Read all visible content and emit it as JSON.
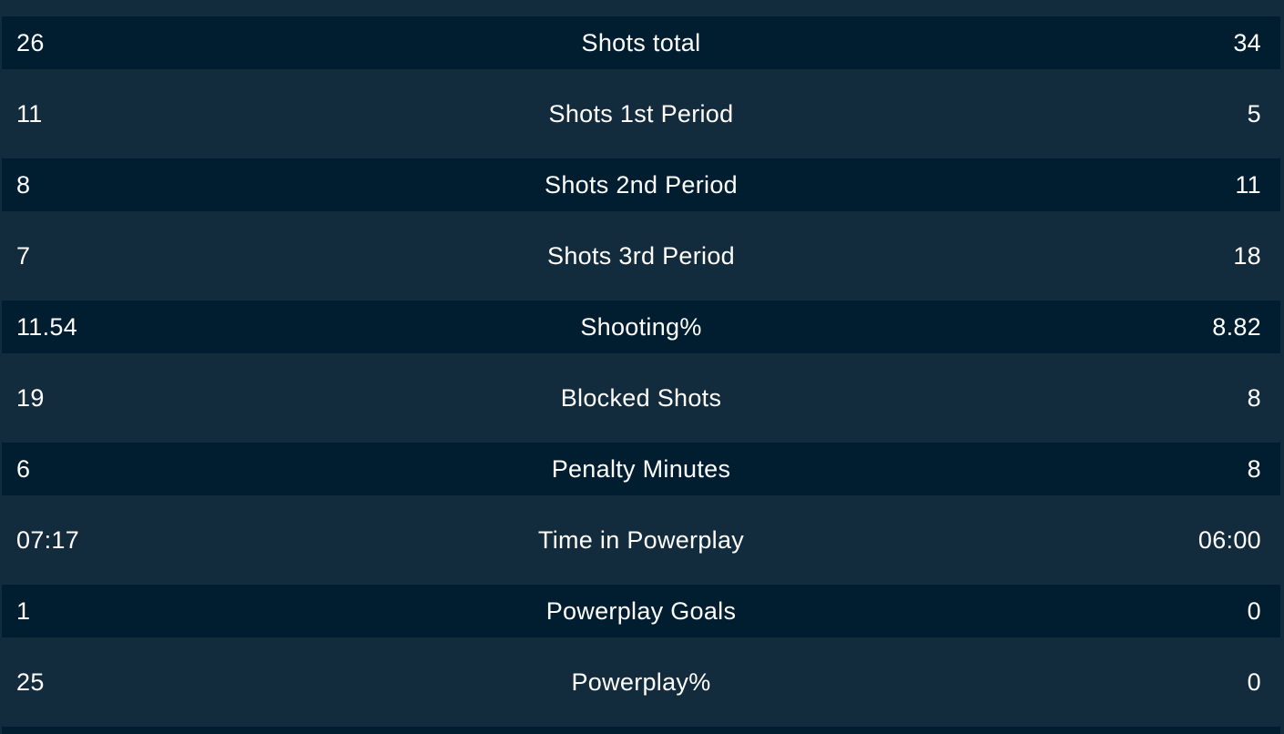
{
  "stats": [
    {
      "home": "26",
      "label": "Shots total",
      "away": "34"
    },
    {
      "home": "11",
      "label": "Shots 1st Period",
      "away": "5"
    },
    {
      "home": "8",
      "label": "Shots 2nd Period",
      "away": "11"
    },
    {
      "home": "7",
      "label": "Shots 3rd Period",
      "away": "18"
    },
    {
      "home": "11.54",
      "label": "Shooting%",
      "away": "8.82"
    },
    {
      "home": "19",
      "label": "Blocked Shots",
      "away": "8"
    },
    {
      "home": "6",
      "label": "Penalty Minutes",
      "away": "8"
    },
    {
      "home": "07:17",
      "label": "Time in Powerplay",
      "away": "06:00"
    },
    {
      "home": "1",
      "label": "Powerplay Goals",
      "away": "0"
    },
    {
      "home": "25",
      "label": "Powerplay%",
      "away": "0"
    }
  ],
  "colors": {
    "background": "#122b3d",
    "row_dark": "#001e30",
    "text": "#ffffff"
  }
}
